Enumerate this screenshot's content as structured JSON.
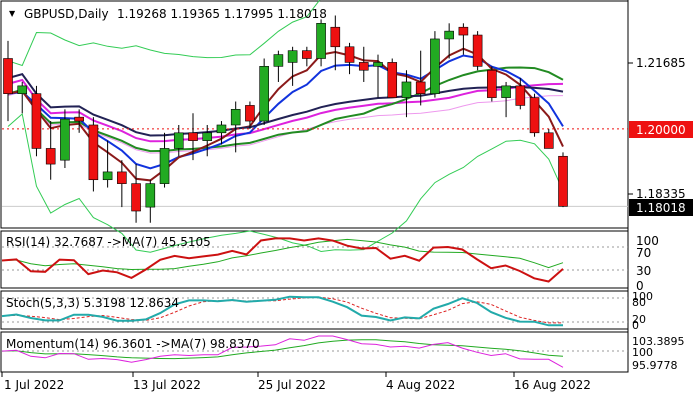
{
  "header": {
    "title": "GBPUSD,Daily",
    "ohlc": "1.19268 1.19365 1.17995 1.18018"
  },
  "price_axis": {
    "ticks": [
      "1.21685",
      "1.18335"
    ],
    "current_price": "1.18018",
    "marked_level": "1.20000"
  },
  "x_axis": {
    "labels": [
      "1 Jul 2022",
      "13 Jul 2022",
      "25 Jul 2022",
      "4 Aug 2022",
      "16 Aug 2022"
    ]
  },
  "subpanels": {
    "rsi": {
      "label": "RSI(14) 32.7687  ->MA(7) 45.5105",
      "ticks": [
        "100",
        "70",
        "30",
        "0"
      ]
    },
    "stoch": {
      "label": "Stoch(5,3,3) 5.3198 12.8634",
      "ticks": [
        "100",
        "80",
        "20",
        "0"
      ]
    },
    "momentum": {
      "label": "Momentum(14) 96.3601  ->MA(7) 98.8370",
      "ticks": [
        "103.3895",
        "100",
        "95.9778"
      ]
    }
  },
  "colors": {
    "bull": "#22aa22",
    "bear": "#ee1111",
    "level": "#ee1111",
    "ma_blue": "#1133dd",
    "ma_magenta": "#dd22dd",
    "ma_navy": "#222255",
    "ma_brown": "#8b1a1a",
    "ma_green": "#228b22",
    "bollinger": "#33cc55",
    "pink": "#ee99ee"
  },
  "chart_data": [
    {
      "type": "candlestick",
      "symbol": "GBPUSD",
      "timeframe": "Daily",
      "x_labels": [
        "1 Jul 2022",
        "13 Jul 2022",
        "25 Jul 2022",
        "4 Aug 2022",
        "16 Aug 2022"
      ],
      "candles": [
        {
          "o": 1.218,
          "h": 1.2225,
          "l": 1.202,
          "c": 1.209
        },
        {
          "o": 1.209,
          "h": 1.212,
          "l": 1.204,
          "c": 1.211
        },
        {
          "o": 1.209,
          "h": 1.211,
          "l": 1.193,
          "c": 1.195
        },
        {
          "o": 1.195,
          "h": 1.202,
          "l": 1.187,
          "c": 1.191
        },
        {
          "o": 1.192,
          "h": 1.205,
          "l": 1.19,
          "c": 1.2025
        },
        {
          "o": 1.203,
          "h": 1.205,
          "l": 1.199,
          "c": 1.202
        },
        {
          "o": 1.201,
          "h": 1.203,
          "l": 1.184,
          "c": 1.187
        },
        {
          "o": 1.187,
          "h": 1.197,
          "l": 1.185,
          "c": 1.189
        },
        {
          "o": 1.189,
          "h": 1.192,
          "l": 1.18,
          "c": 1.186
        },
        {
          "o": 1.186,
          "h": 1.191,
          "l": 1.176,
          "c": 1.179
        },
        {
          "o": 1.18,
          "h": 1.187,
          "l": 1.176,
          "c": 1.186
        },
        {
          "o": 1.186,
          "h": 1.199,
          "l": 1.185,
          "c": 1.195
        },
        {
          "o": 1.195,
          "h": 1.201,
          "l": 1.193,
          "c": 1.199
        },
        {
          "o": 1.199,
          "h": 1.204,
          "l": 1.192,
          "c": 1.197
        },
        {
          "o": 1.197,
          "h": 1.201,
          "l": 1.193,
          "c": 1.199
        },
        {
          "o": 1.199,
          "h": 1.202,
          "l": 1.196,
          "c": 1.201
        },
        {
          "o": 1.201,
          "h": 1.207,
          "l": 1.194,
          "c": 1.205
        },
        {
          "o": 1.206,
          "h": 1.207,
          "l": 1.2,
          "c": 1.202
        },
        {
          "o": 1.202,
          "h": 1.218,
          "l": 1.201,
          "c": 1.216
        },
        {
          "o": 1.216,
          "h": 1.22,
          "l": 1.212,
          "c": 1.219
        },
        {
          "o": 1.217,
          "h": 1.221,
          "l": 1.211,
          "c": 1.22
        },
        {
          "o": 1.22,
          "h": 1.221,
          "l": 1.216,
          "c": 1.218
        },
        {
          "o": 1.218,
          "h": 1.228,
          "l": 1.216,
          "c": 1.227
        },
        {
          "o": 1.226,
          "h": 1.229,
          "l": 1.215,
          "c": 1.221
        },
        {
          "o": 1.221,
          "h": 1.222,
          "l": 1.214,
          "c": 1.217
        },
        {
          "o": 1.217,
          "h": 1.221,
          "l": 1.212,
          "c": 1.215
        },
        {
          "o": 1.216,
          "h": 1.219,
          "l": 1.208,
          "c": 1.217
        },
        {
          "o": 1.217,
          "h": 1.218,
          "l": 1.208,
          "c": 1.208
        },
        {
          "o": 1.208,
          "h": 1.215,
          "l": 1.203,
          "c": 1.212
        },
        {
          "o": 1.212,
          "h": 1.22,
          "l": 1.206,
          "c": 1.209
        },
        {
          "o": 1.209,
          "h": 1.225,
          "l": 1.208,
          "c": 1.223
        },
        {
          "o": 1.223,
          "h": 1.227,
          "l": 1.218,
          "c": 1.225
        },
        {
          "o": 1.226,
          "h": 1.227,
          "l": 1.219,
          "c": 1.224
        },
        {
          "o": 1.224,
          "h": 1.225,
          "l": 1.215,
          "c": 1.216
        },
        {
          "o": 1.215,
          "h": 1.216,
          "l": 1.207,
          "c": 1.208
        },
        {
          "o": 1.208,
          "h": 1.212,
          "l": 1.203,
          "c": 1.211
        },
        {
          "o": 1.211,
          "h": 1.213,
          "l": 1.205,
          "c": 1.206
        },
        {
          "o": 1.208,
          "h": 1.209,
          "l": 1.198,
          "c": 1.199
        },
        {
          "o": 1.199,
          "h": 1.2,
          "l": 1.195,
          "c": 1.195
        },
        {
          "o": 1.193,
          "h": 1.194,
          "l": 1.18,
          "c": 1.1802
        }
      ],
      "price_ticks": [
        "1.21685",
        "1.18335"
      ],
      "level_line": 1.2,
      "last_price": 1.18018,
      "overlays": [
        "moving averages",
        "bollinger bands"
      ]
    },
    {
      "type": "line",
      "name": "RSI(14)",
      "value": 32.7687,
      "ma": 45.5105,
      "ylim": [
        0,
        100
      ],
      "levels": [
        30,
        70
      ]
    },
    {
      "type": "line",
      "name": "Stoch(5,3,3)",
      "values": [
        5.3198,
        12.8634
      ],
      "ylim": [
        0,
        100
      ],
      "levels": [
        20,
        80
      ]
    },
    {
      "type": "line",
      "name": "Momentum(14)",
      "value": 96.3601,
      "ma": 98.837,
      "ylim": [
        95.9778,
        103.3895
      ],
      "levels": [
        100
      ]
    }
  ]
}
